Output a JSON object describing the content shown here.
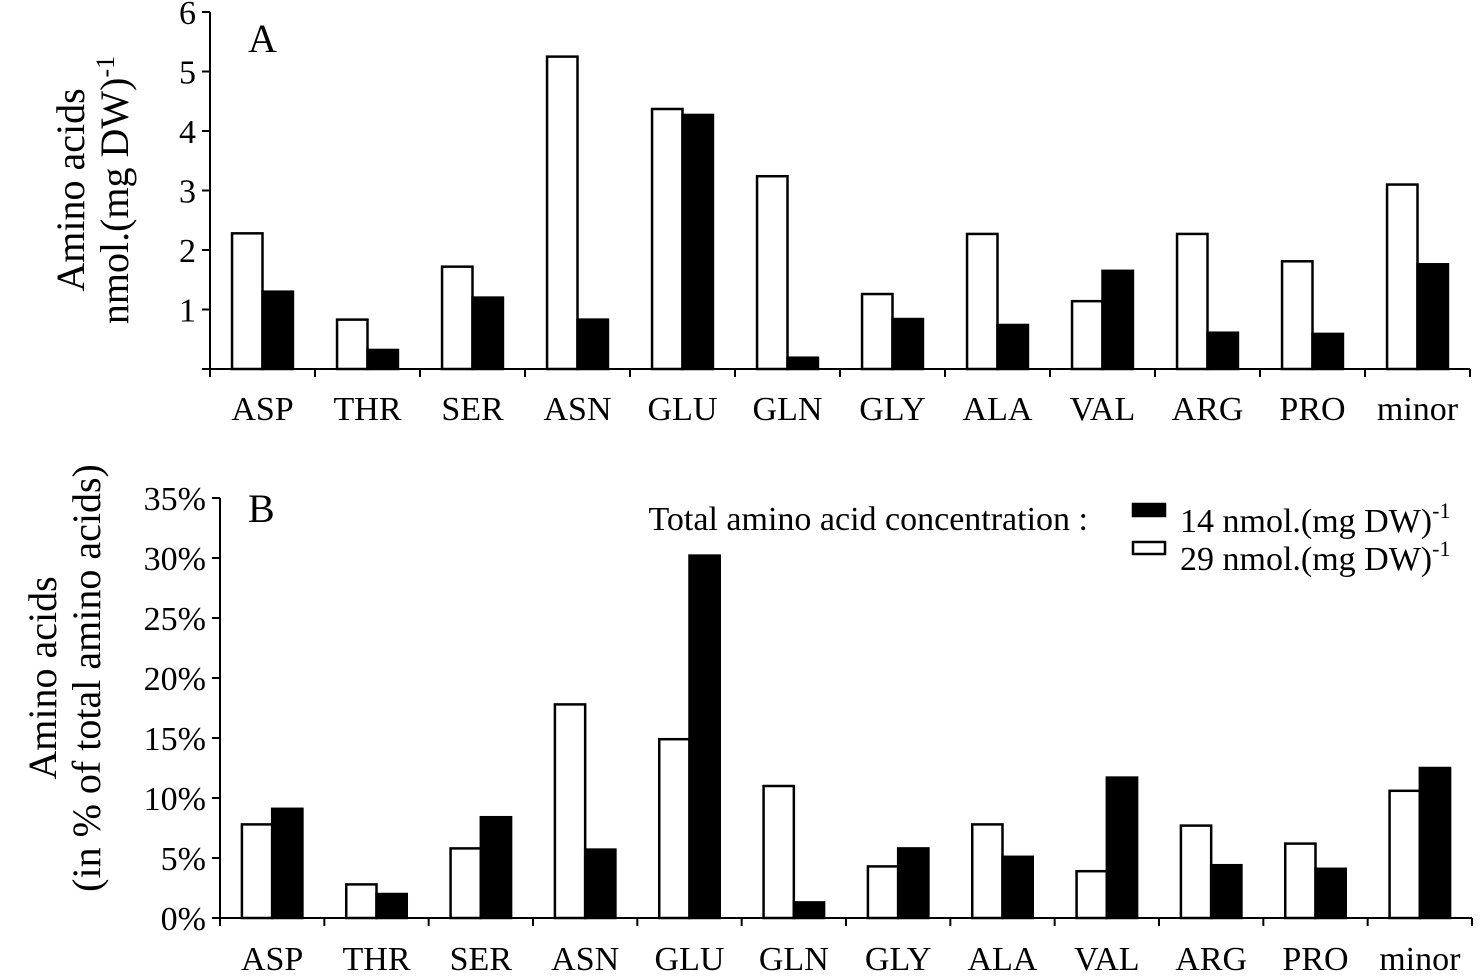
{
  "chart_data": [
    {
      "type": "bar",
      "panel_label": "A",
      "ylabel_line1": "Amino acids",
      "ylabel_line2": "nmol.(mg DW)",
      "ylabel_sup": "-1",
      "ylim": [
        0,
        6
      ],
      "yticks": [
        "",
        "1",
        "2",
        "3",
        "4",
        "5",
        "6"
      ],
      "categories": [
        "ASP",
        "THR",
        "SER",
        "ASN",
        "GLU",
        "GLN",
        "GLY",
        "ALA",
        "VAL",
        "ARG",
        "PRO",
        "minor"
      ],
      "series": [
        {
          "key": "open",
          "values": [
            2.28,
            0.83,
            1.72,
            5.25,
            4.37,
            3.24,
            1.26,
            2.27,
            1.14,
            2.27,
            1.81,
            3.1
          ]
        },
        {
          "key": "solid",
          "values": [
            1.3,
            0.32,
            1.2,
            0.83,
            4.27,
            0.19,
            0.84,
            0.74,
            1.65,
            0.61,
            0.59,
            1.76
          ]
        }
      ]
    },
    {
      "type": "bar",
      "panel_label": "B",
      "ylabel_line1": "Amino acids",
      "ylabel_line2": "(in % of total amino acids)",
      "ylim": [
        0,
        35
      ],
      "yticks": [
        "0%",
        "5%",
        "10%",
        "15%",
        "20%",
        "25%",
        "30%",
        "35%"
      ],
      "categories": [
        "ASP",
        "THR",
        "SER",
        "ASN",
        "GLU",
        "GLN",
        "GLY",
        "ALA",
        "VAL",
        "ARG",
        "PRO",
        "minor"
      ],
      "legend_title": "Total amino acid concentration :",
      "legend_position": "top-right",
      "series": [
        {
          "key": "open",
          "name": "29 nmol.(mg DW)",
          "name_sup": "-1",
          "values": [
            7.8,
            2.8,
            5.8,
            17.8,
            14.9,
            11.0,
            4.3,
            7.8,
            3.9,
            7.7,
            6.2,
            10.6
          ]
        },
        {
          "key": "solid",
          "name": "14 nmol.(mg DW)",
          "name_sup": "-1",
          "values": [
            9.1,
            2.0,
            8.4,
            5.7,
            30.2,
            1.3,
            5.8,
            5.1,
            11.7,
            4.4,
            4.1,
            12.5
          ]
        }
      ]
    }
  ]
}
